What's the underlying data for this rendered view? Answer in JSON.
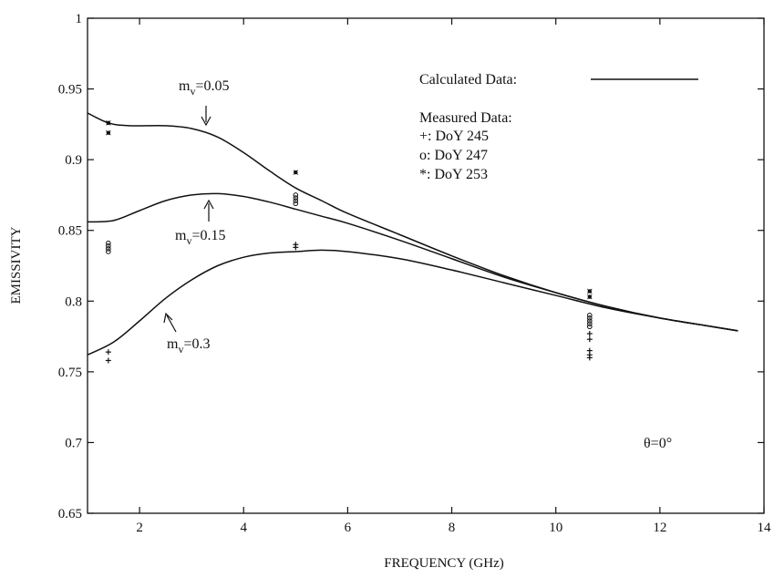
{
  "chart_data": {
    "type": "line",
    "xlabel": "FREQUENCY (GHz)",
    "ylabel": "EMISSIVITY",
    "xlim": [
      1,
      14
    ],
    "ylim": [
      0.65,
      1
    ],
    "xticks": [
      2,
      4,
      6,
      8,
      10,
      12,
      14
    ],
    "xtick_labels": [
      "2",
      "4",
      "6",
      "8",
      "10",
      "12",
      "14"
    ],
    "yticks": [
      0.65,
      0.7,
      0.75,
      0.8,
      0.85,
      0.9,
      0.95,
      1
    ],
    "ytick_labels": [
      "0.65",
      "0.7",
      "0.75",
      "0.8",
      "0.85",
      "0.9",
      "0.95",
      "1"
    ],
    "grid": false,
    "series": [
      {
        "label": "m_v=0.05",
        "x": [
          1.0,
          1.4,
          1.8,
          2.5,
          3.0,
          3.5,
          4.0,
          4.5,
          5.0,
          5.5,
          6.0,
          7.0,
          8.0,
          9.0,
          10.0,
          11.0,
          12.0,
          13.0,
          13.5
        ],
        "y": [
          0.933,
          0.926,
          0.924,
          0.924,
          0.922,
          0.916,
          0.905,
          0.892,
          0.88,
          0.871,
          0.862,
          0.847,
          0.832,
          0.818,
          0.806,
          0.796,
          0.788,
          0.782,
          0.779
        ]
      },
      {
        "label": "m_v=0.15",
        "x": [
          1.0,
          1.5,
          2.0,
          2.5,
          3.0,
          3.5,
          4.0,
          4.5,
          5.0,
          5.5,
          6.0,
          7.0,
          8.0,
          9.0,
          10.0,
          11.0,
          12.0,
          13.0,
          13.5
        ],
        "y": [
          0.856,
          0.857,
          0.864,
          0.871,
          0.875,
          0.876,
          0.874,
          0.87,
          0.865,
          0.86,
          0.855,
          0.843,
          0.83,
          0.817,
          0.806,
          0.796,
          0.788,
          0.782,
          0.779
        ]
      },
      {
        "label": "m_v=0.3",
        "x": [
          1.0,
          1.5,
          2.0,
          2.5,
          3.0,
          3.5,
          4.0,
          4.5,
          5.0,
          5.5,
          6.0,
          7.0,
          8.0,
          9.0,
          10.0,
          11.0,
          12.0,
          13.0,
          13.5
        ],
        "y": [
          0.762,
          0.771,
          0.786,
          0.802,
          0.815,
          0.825,
          0.831,
          0.834,
          0.835,
          0.836,
          0.835,
          0.83,
          0.822,
          0.813,
          0.804,
          0.795,
          0.788,
          0.782,
          0.779
        ]
      }
    ],
    "measured": [
      {
        "marker": "+",
        "legend_label": "+: DoY 245",
        "points": [
          [
            1.4,
            0.764
          ],
          [
            1.4,
            0.758
          ],
          [
            5.0,
            0.84
          ],
          [
            5.0,
            0.838
          ],
          [
            10.65,
            0.777
          ],
          [
            10.65,
            0.773
          ],
          [
            10.65,
            0.765
          ],
          [
            10.65,
            0.762
          ],
          [
            10.65,
            0.76
          ]
        ]
      },
      {
        "marker": "o",
        "legend_label": "o: DoY 247",
        "points": [
          [
            1.4,
            0.841
          ],
          [
            1.4,
            0.839
          ],
          [
            1.4,
            0.837
          ],
          [
            1.4,
            0.835
          ],
          [
            5.0,
            0.875
          ],
          [
            5.0,
            0.873
          ],
          [
            5.0,
            0.871
          ],
          [
            5.0,
            0.869
          ],
          [
            10.65,
            0.79
          ],
          [
            10.65,
            0.788
          ],
          [
            10.65,
            0.786
          ],
          [
            10.65,
            0.784
          ],
          [
            10.65,
            0.782
          ]
        ]
      },
      {
        "marker": "*",
        "legend_label": "*: DoY 253",
        "points": [
          [
            1.4,
            0.926
          ],
          [
            1.4,
            0.919
          ],
          [
            5.0,
            0.891
          ],
          [
            10.65,
            0.807
          ],
          [
            10.65,
            0.803
          ]
        ]
      }
    ],
    "legend": {
      "position": "top-right",
      "calculated_label": "Calculated Data:",
      "measured_title": "Measured Data:"
    },
    "annotations": [
      {
        "id": "mv005",
        "base": "m",
        "sub": "v",
        "rest": "=0.05",
        "arrow": "down"
      },
      {
        "id": "mv015",
        "base": "m",
        "sub": "v",
        "rest": "=0.15",
        "arrow": "up"
      },
      {
        "id": "mv03",
        "base": "m",
        "sub": "v",
        "rest": "=0.3",
        "arrow": "up-right"
      }
    ],
    "angle_note": "θ=0°"
  }
}
